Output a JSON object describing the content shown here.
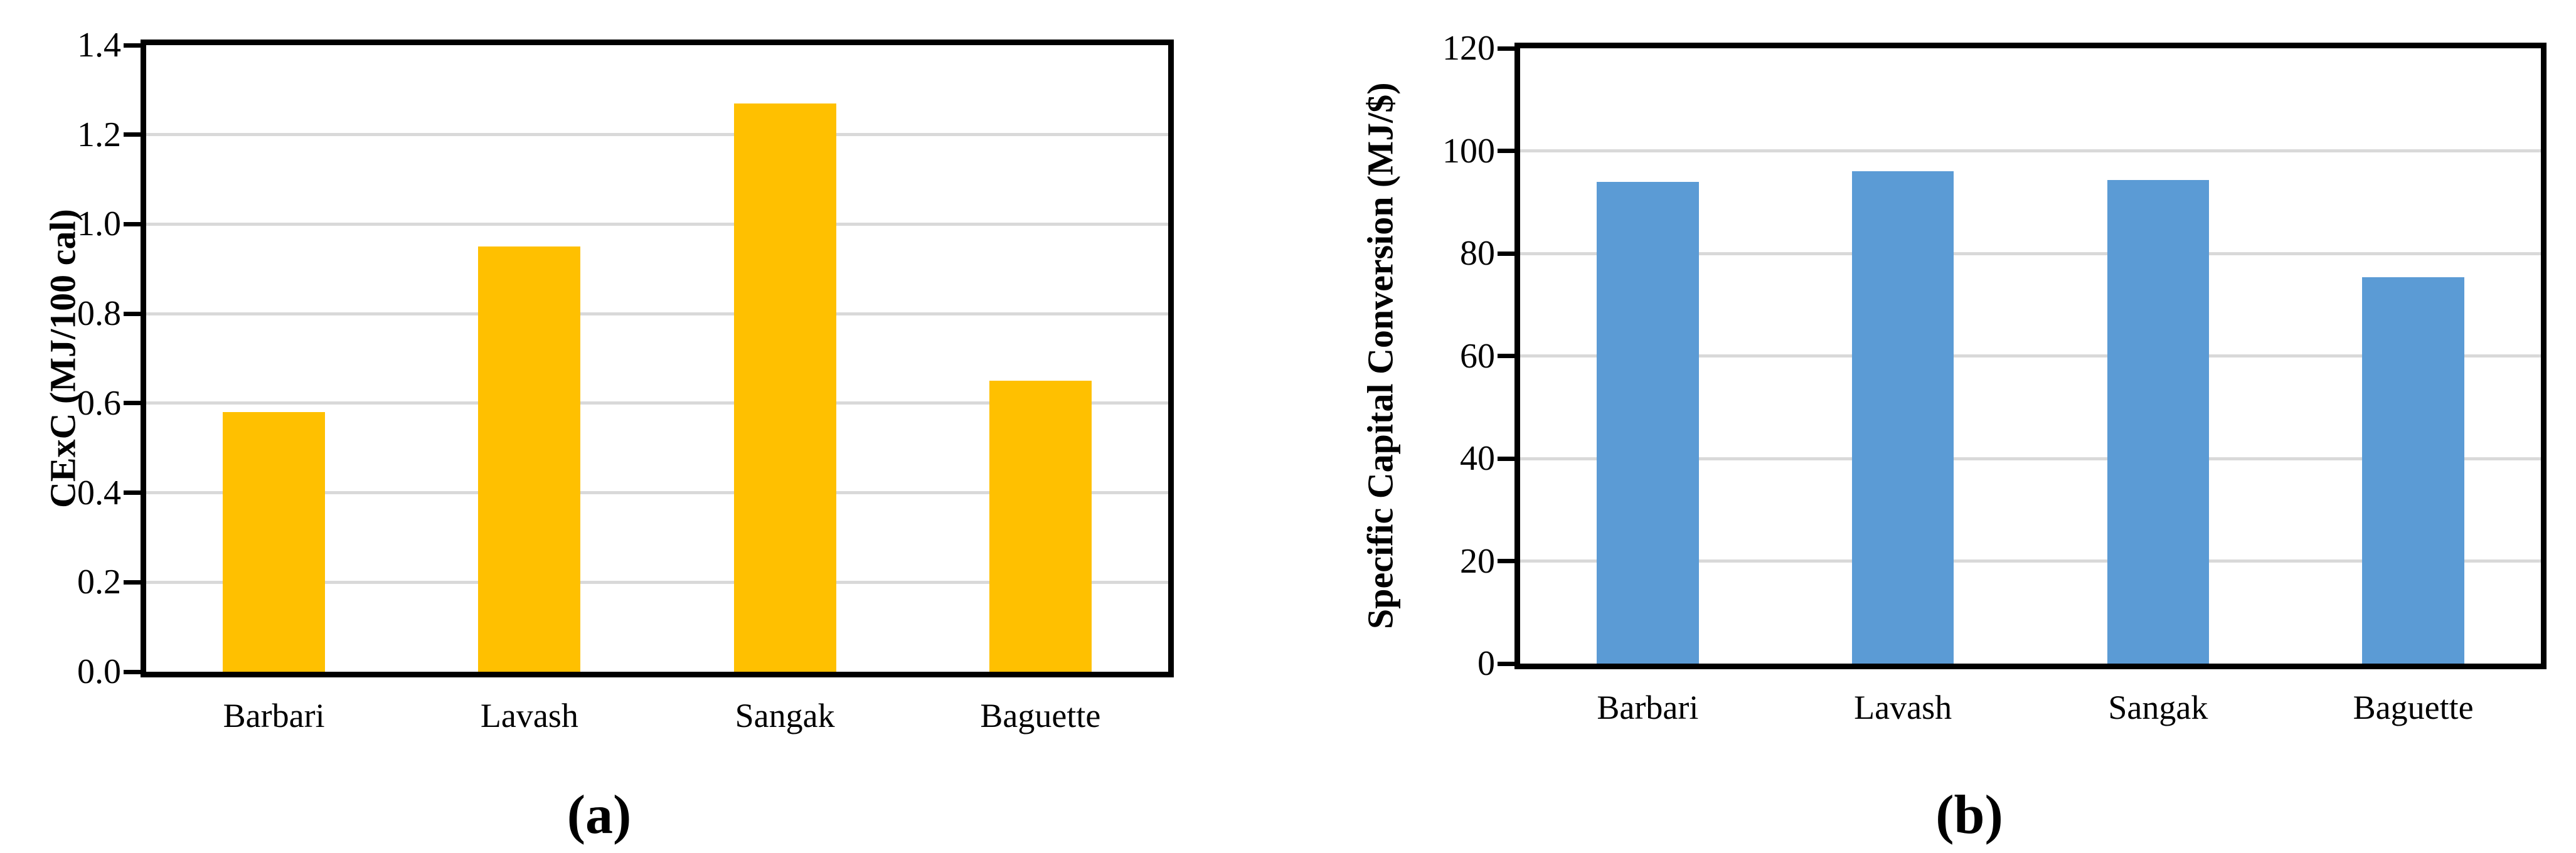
{
  "figure": {
    "captions": {
      "a": "(a)",
      "b": "(b)"
    }
  },
  "chart_data": [
    {
      "type": "bar",
      "panel": "a",
      "caption": "(a)",
      "title": "",
      "xlabel": "",
      "ylabel": "CExC (MJ/100 cal)",
      "categories": [
        "Barbari",
        "Lavash",
        "Sangak",
        "Baguette"
      ],
      "values": [
        0.58,
        0.95,
        1.27,
        0.65
      ],
      "ylim": [
        0,
        1.4
      ],
      "ytick_step": 0.2,
      "yticks": [
        {
          "value": 0.0,
          "label": "0.0"
        },
        {
          "value": 0.2,
          "label": "0.2"
        },
        {
          "value": 0.4,
          "label": "0.4"
        },
        {
          "value": 0.6,
          "label": "0.6"
        },
        {
          "value": 0.8,
          "label": "0.8"
        },
        {
          "value": 1.0,
          "label": "1.0"
        },
        {
          "value": 1.2,
          "label": "1.2"
        },
        {
          "value": 1.4,
          "label": "1.4"
        }
      ],
      "bar_color": "#FFC000",
      "gridline_color": "#D9D9D9",
      "axis_color": "#000000",
      "grid": true,
      "legend_position": "none"
    },
    {
      "type": "bar",
      "panel": "b",
      "caption": "(b)",
      "title": "",
      "xlabel": "",
      "ylabel": "Specific Capital Conversion (MJ/$)",
      "categories": [
        "Barbari",
        "Lavash",
        "Sangak",
        "Baguette"
      ],
      "values": [
        94,
        96,
        94.3,
        75.3
      ],
      "ylim": [
        0,
        120
      ],
      "ytick_step": 20,
      "yticks": [
        {
          "value": 0,
          "label": "0"
        },
        {
          "value": 20,
          "label": "20"
        },
        {
          "value": 40,
          "label": "40"
        },
        {
          "value": 60,
          "label": "60"
        },
        {
          "value": 80,
          "label": "80"
        },
        {
          "value": 100,
          "label": "100"
        },
        {
          "value": 120,
          "label": "120"
        }
      ],
      "bar_color": "#5B9BD5",
      "gridline_color": "#D9D9D9",
      "axis_color": "#000000",
      "grid": true,
      "legend_position": "none"
    }
  ]
}
